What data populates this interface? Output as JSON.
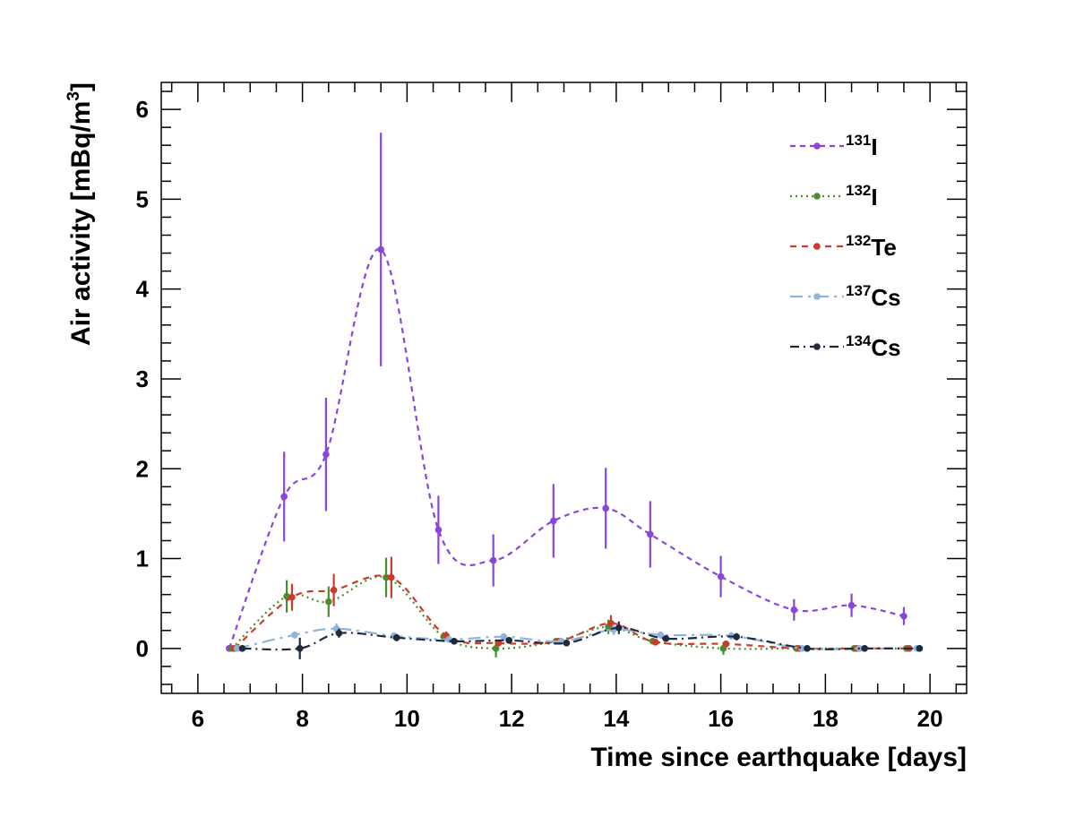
{
  "chart_data": {
    "type": "line",
    "xlabel": "Time since earthquake [days]",
    "ylabel": "Air activity [mBq/m",
    "ylabel_sup": "3",
    "ylabel_close": "]",
    "xlim": [
      5.3,
      20.7
    ],
    "ylim": [
      -0.5,
      6.3
    ],
    "xticks": [
      6,
      8,
      10,
      12,
      14,
      16,
      18,
      20
    ],
    "yticks": [
      0,
      1,
      2,
      3,
      4,
      5,
      6
    ],
    "grid": false,
    "legend_position": "top-right",
    "series": [
      {
        "name": "131I",
        "mass": "131",
        "element": "I",
        "color": "#8a46d9",
        "dash": "6,5",
        "x": [
          6.6,
          7.65,
          8.45,
          9.5,
          10.6,
          11.65,
          12.8,
          13.8,
          14.65,
          16.0,
          17.4,
          18.5,
          19.5
        ],
        "y": [
          0.0,
          1.69,
          2.16,
          4.44,
          1.32,
          0.98,
          1.42,
          1.56,
          1.27,
          0.8,
          0.43,
          0.48,
          0.36
        ],
        "err": [
          0.0,
          0.5,
          0.63,
          1.3,
          0.38,
          0.29,
          0.41,
          0.45,
          0.37,
          0.23,
          0.12,
          0.13,
          0.1
        ]
      },
      {
        "name": "132I",
        "mass": "132",
        "element": "I",
        "color": "#4a8c30",
        "dash": "2,4",
        "x": [
          6.65,
          7.7,
          8.5,
          9.6,
          10.7,
          11.7,
          12.85,
          13.85,
          14.7,
          16.05,
          17.45,
          18.55,
          19.55
        ],
        "y": [
          0.0,
          0.58,
          0.52,
          0.79,
          0.13,
          0.0,
          0.08,
          0.24,
          0.08,
          0.0,
          0.0,
          0.0,
          0.0
        ],
        "err": [
          0.0,
          0.18,
          0.17,
          0.22,
          0.05,
          0.1,
          0.03,
          0.08,
          0.03,
          0.07,
          0.02,
          0.02,
          0.02
        ]
      },
      {
        "name": "132Te",
        "mass": "132",
        "element": "Te",
        "color": "#cc3b2a",
        "dash": "7,6",
        "x": [
          6.7,
          7.8,
          8.6,
          9.7,
          10.75,
          11.75,
          12.9,
          13.9,
          14.75,
          16.1,
          17.5,
          18.6,
          19.6
        ],
        "y": [
          0.0,
          0.57,
          0.65,
          0.79,
          0.14,
          0.06,
          0.08,
          0.28,
          0.07,
          0.05,
          0.0,
          0.0,
          0.0
        ],
        "err": [
          0.0,
          0.15,
          0.18,
          0.23,
          0.05,
          0.03,
          0.03,
          0.09,
          0.03,
          0.02,
          0.02,
          0.02,
          0.02
        ]
      },
      {
        "name": "137Cs",
        "mass": "137",
        "element": "Cs",
        "color": "#8fb3d9",
        "dash": "14,6,3,6",
        "x": [
          6.75,
          7.85,
          8.65,
          9.75,
          10.8,
          11.85,
          12.95,
          13.95,
          14.85,
          16.2,
          17.55,
          18.65,
          19.75
        ],
        "y": [
          0.0,
          0.15,
          0.22,
          0.14,
          0.1,
          0.13,
          0.08,
          0.21,
          0.15,
          0.14,
          0.0,
          0.0,
          0.0
        ],
        "err": [
          0.0,
          0.04,
          0.06,
          0.04,
          0.03,
          0.04,
          0.03,
          0.06,
          0.04,
          0.04,
          0.02,
          0.02,
          0.02
        ]
      },
      {
        "name": "134Cs",
        "mass": "134",
        "element": "Cs",
        "color": "#1f2a3d",
        "dash": "10,5,2,5",
        "x": [
          6.85,
          7.95,
          8.7,
          9.8,
          10.9,
          11.95,
          13.05,
          14.05,
          14.95,
          16.3,
          17.65,
          18.75,
          19.8
        ],
        "y": [
          0.0,
          0.0,
          0.17,
          0.12,
          0.08,
          0.09,
          0.06,
          0.23,
          0.11,
          0.13,
          0.0,
          0.0,
          0.0
        ],
        "err": [
          0.0,
          0.12,
          0.05,
          0.04,
          0.03,
          0.03,
          0.02,
          0.07,
          0.03,
          0.04,
          0.02,
          0.02,
          0.02
        ]
      }
    ]
  }
}
